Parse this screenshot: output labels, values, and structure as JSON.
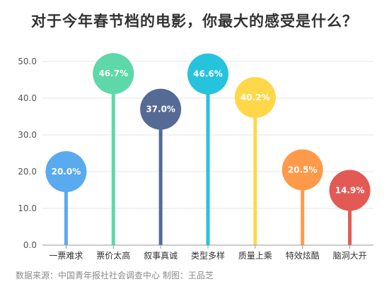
{
  "title": "对于今年春节档的电影，你最大的感受是什么？",
  "source": "数据来源：中国青年报社社会调查中心 制图：王品芝",
  "chart_data": {
    "type": "bar",
    "title": "对于今年春节档的电影，你最大的感受是什么？",
    "xlabel": "",
    "ylabel": "",
    "ylim": [
      0,
      55
    ],
    "yticks": [
      "0.0",
      "10.0",
      "20.0",
      "30.0",
      "40.0",
      "50.0"
    ],
    "ytick_values": [
      0,
      10,
      20,
      30,
      40,
      50
    ],
    "grid": "horizontal",
    "categories": [
      "一票难求",
      "票价太高",
      "叙事真诚",
      "类型多样",
      "质量上乘",
      "特效炫酷",
      "脑洞大开"
    ],
    "values": [
      20.0,
      46.7,
      37.0,
      46.6,
      40.2,
      20.5,
      14.9
    ],
    "data_labels": [
      "20.0%",
      "46.7%",
      "37.0%",
      "46.6%",
      "40.2%",
      "20.5%",
      "14.9%"
    ],
    "colors": [
      "#5aaaf0",
      "#5ed8a8",
      "#566a96",
      "#26c4dc",
      "#ffd84a",
      "#ff9a4a",
      "#e35a55"
    ]
  }
}
